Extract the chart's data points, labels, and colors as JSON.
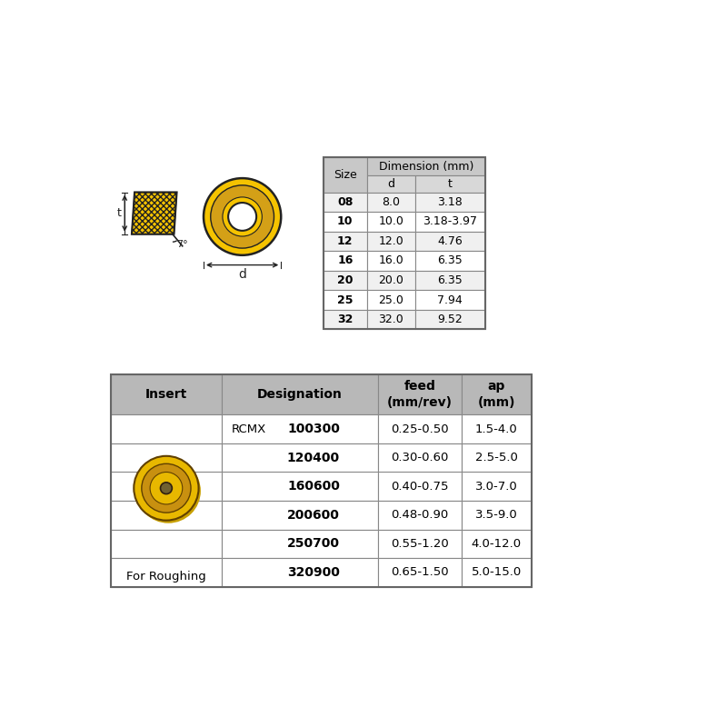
{
  "bg_color": "#ffffff",
  "dim_table": {
    "header_bg": "#c8c8c8",
    "subheader_bg": "#d8d8d8",
    "row_bg_alt": "#f0f0f0",
    "row_bg": "#ffffff",
    "border_color": "#888888",
    "title": "Dimension (mm)",
    "col1_header": "Size",
    "col2_header": "d",
    "col3_header": "t",
    "rows": [
      [
        "08",
        "8.0",
        "3.18"
      ],
      [
        "10",
        "10.0",
        "3.18-3.97"
      ],
      [
        "12",
        "12.0",
        "4.76"
      ],
      [
        "16",
        "16.0",
        "6.35"
      ],
      [
        "20",
        "20.0",
        "6.35"
      ],
      [
        "25",
        "25.0",
        "7.94"
      ],
      [
        "32",
        "32.0",
        "9.52"
      ]
    ]
  },
  "insert_table": {
    "header_bg": "#b8b8b8",
    "row_bg": "#ffffff",
    "border_color": "#888888",
    "col_headers": [
      "Insert",
      "Designation",
      "feed\n(mm/rev)",
      "ap\n(mm)"
    ],
    "rcmx_label": "RCMX",
    "rows": [
      [
        "100300",
        "0.25-0.50",
        "1.5-4.0"
      ],
      [
        "120400",
        "0.30-0.60",
        "2.5-5.0"
      ],
      [
        "160600",
        "0.40-0.75",
        "3.0-7.0"
      ],
      [
        "200600",
        "0.48-0.90",
        "3.5-9.0"
      ],
      [
        "250700",
        "0.55-1.20",
        "4.0-12.0"
      ],
      [
        "320900",
        "0.65-1.50",
        "5.0-15.0"
      ]
    ],
    "insert_label": "For Roughing"
  },
  "yellow_color": "#F5C300",
  "yellow_dark": "#D4A017",
  "line_color": "#222222",
  "angle_label": "7°",
  "dim_d_label": "d",
  "dim_t_label": "t"
}
